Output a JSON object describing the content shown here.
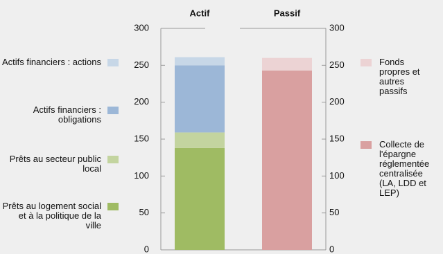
{
  "chart_data": {
    "type": "stacked_bar",
    "categories": [
      "Actif",
      "Passif"
    ],
    "series": [
      {
        "name": "Prêts au logement social et à la politique de la ville",
        "color": "#9fbb63",
        "values": [
          138,
          null
        ]
      },
      {
        "name": "Prêts au secteur public local",
        "color": "#c3d49f",
        "values": [
          21,
          null
        ]
      },
      {
        "name": "Actifs financiers : obligations",
        "color": "#9cb7d7",
        "values": [
          91,
          null
        ]
      },
      {
        "name": "Actifs financiers : actions",
        "color": "#c7d7e7",
        "values": [
          11,
          null
        ]
      },
      {
        "name": "Collecte de l'épargne réglementée centralisée (LA, LDD et LEP)",
        "color": "#d9a0a0",
        "values": [
          null,
          243
        ]
      },
      {
        "name": "Fonds propres et autres passifs",
        "color": "#ecd3d4",
        "values": [
          null,
          17
        ]
      }
    ],
    "ylim": [
      0,
      300
    ],
    "yticks": [
      0,
      50,
      100,
      150,
      200,
      250,
      300
    ]
  }
}
